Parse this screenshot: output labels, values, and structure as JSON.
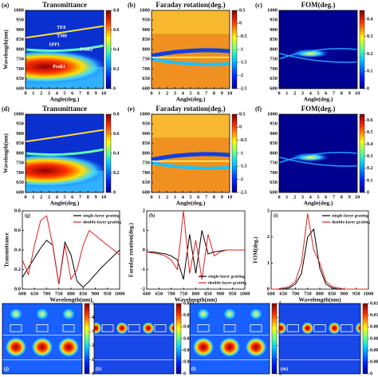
{
  "chart_data": [
    {
      "type": "heatmap",
      "panel": "(a)",
      "title": "Transmittance",
      "xlabel": "Angle(deg.)",
      "ylabel": "Wavelength(nm)",
      "xlim": [
        0,
        10
      ],
      "xticks": [
        0,
        1,
        2,
        3,
        4,
        5,
        6,
        7,
        8,
        9,
        10
      ],
      "ylim": [
        600,
        1000
      ],
      "yticks": [
        600,
        650,
        700,
        750,
        800,
        850,
        900,
        950,
        1000
      ],
      "colorbar_lim": [
        0,
        0.8
      ],
      "colorbar_ticks": [
        0,
        0.2,
        0.4,
        0.6,
        0.8
      ],
      "annotations": [
        "TE0",
        "TM0",
        "SPP1",
        "Peak2",
        "Peak1"
      ]
    },
    {
      "type": "heatmap",
      "panel": "(b)",
      "title": "Faraday rotation(deg.)",
      "xlabel": "Angle(deg.)",
      "xlim": [
        0,
        10
      ],
      "xticks": [
        0,
        1,
        2,
        3,
        4,
        5,
        6,
        7,
        8,
        9,
        10
      ],
      "ylim": [
        600,
        1000
      ],
      "yticks": [
        600,
        650,
        700,
        750,
        800,
        850,
        900,
        950,
        1000
      ],
      "colorbar_lim": [
        -2.5,
        0.5
      ],
      "colorbar_ticks": [
        0.5,
        0,
        -0.5,
        -1,
        -1.5,
        -2,
        -2.5
      ]
    },
    {
      "type": "heatmap",
      "panel": "(c)",
      "title": "FOM(deg.)",
      "xlabel": "Angle(deg.)",
      "xlim": [
        0,
        10
      ],
      "xticks": [
        0,
        1,
        2,
        3,
        4,
        5,
        6,
        7,
        8,
        9,
        10
      ],
      "ylim": [
        600,
        1000
      ],
      "yticks": [
        600,
        650,
        700,
        750,
        800,
        850,
        900,
        950,
        1000
      ],
      "colorbar_lim": [
        0,
        0.45
      ],
      "colorbar_ticks": [
        0,
        0.1,
        0.2,
        0.3,
        0.4
      ]
    },
    {
      "type": "heatmap",
      "panel": "(d)",
      "title": "Transmittance",
      "xlabel": "Angle(deg.)",
      "ylabel": "Wavelength(nm)",
      "xlim": [
        0,
        10
      ],
      "xticks": [
        0,
        1,
        2,
        3,
        4,
        5,
        6,
        7,
        8,
        9,
        10
      ],
      "ylim": [
        600,
        1000
      ],
      "yticks": [
        600,
        650,
        700,
        750,
        800,
        850,
        900,
        950,
        1000
      ],
      "colorbar_lim": [
        0,
        0.8
      ],
      "colorbar_ticks": [
        0,
        0.2,
        0.4,
        0.6,
        0.8
      ]
    },
    {
      "type": "heatmap",
      "panel": "(e)",
      "title": "Faraday rotation(deg.)",
      "xlabel": "Angle(deg.)",
      "xlim": [
        0,
        10
      ],
      "xticks": [
        0,
        1,
        2,
        3,
        4,
        5,
        6,
        7,
        8,
        9,
        10
      ],
      "ylim": [
        600,
        1000
      ],
      "yticks": [
        600,
        650,
        700,
        750,
        800,
        850,
        900,
        950,
        1000
      ],
      "colorbar_lim": [
        -2.5,
        0.5
      ],
      "colorbar_ticks": [
        0.5,
        0,
        -0.5,
        -1,
        -1.5,
        -2,
        -2.5
      ]
    },
    {
      "type": "heatmap",
      "panel": "(f)",
      "title": "FOM(deg.)",
      "xlabel": "Angle(deg.)",
      "xlim": [
        0,
        10
      ],
      "xticks": [
        0,
        1,
        2,
        3,
        4,
        5,
        6,
        7,
        8,
        9,
        10
      ],
      "ylim": [
        600,
        1000
      ],
      "yticks": [
        600,
        650,
        700,
        750,
        800,
        850,
        900,
        950,
        1000
      ],
      "colorbar_lim": [
        0,
        0.65
      ],
      "colorbar_ticks": [
        0,
        0.1,
        0.2,
        0.3,
        0.4,
        0.5,
        0.6
      ]
    },
    {
      "type": "line",
      "panel": "(g)",
      "xlabel": "Wavelength(nm)",
      "ylabel": "Transmittance",
      "xlim": [
        600,
        1000
      ],
      "xticks": [
        600,
        650,
        700,
        750,
        800,
        850,
        900,
        950,
        1000
      ],
      "ylim": [
        0,
        0.8
      ],
      "yticks": [
        {
          "value": 0,
          "label": "0.0"
        },
        {
          "value": 0.2,
          "label": "0.2"
        },
        {
          "value": 0.4,
          "label": "0.4"
        },
        {
          "value": 0.6,
          "label": "0.6"
        },
        {
          "value": 0.8,
          "label": "0.8"
        }
      ],
      "legend": "upper right",
      "x": [
        600,
        625,
        650,
        675,
        700,
        725,
        750,
        775,
        800,
        825,
        850,
        875,
        900,
        925,
        950,
        975,
        1000
      ],
      "series": [
        {
          "name": "single-layer grating",
          "color": "#000000",
          "values": [
            0.12,
            0.22,
            0.32,
            0.42,
            0.5,
            0.45,
            0.05,
            0.48,
            0.35,
            0.08,
            0.02,
            0.08,
            0.15,
            0.22,
            0.28,
            0.34,
            0.4
          ]
        },
        {
          "name": "double-layer grating",
          "color": "#e02020",
          "values": [
            0.3,
            0.15,
            0.45,
            0.7,
            0.75,
            0.45,
            0.05,
            0.45,
            0.1,
            0.2,
            0.45,
            0.6,
            0.55,
            0.5,
            0.45,
            0.4,
            0.35
          ]
        }
      ]
    },
    {
      "type": "line",
      "panel": "(h)",
      "xlabel": "Wavelength(nm)",
      "ylabel": "Faraday rotation(deg.)",
      "xlim": [
        600,
        1000
      ],
      "xticks": [
        600,
        650,
        700,
        750,
        800,
        850,
        900,
        950,
        1000
      ],
      "ylim": [
        -2,
        2
      ],
      "yticks": [
        -2,
        -1,
        0,
        1,
        2
      ],
      "legend": "lower right",
      "x": [
        600,
        625,
        650,
        675,
        700,
        725,
        750,
        775,
        800,
        825,
        850,
        875,
        900,
        925,
        950,
        975,
        1000
      ],
      "series": [
        {
          "name": "single-layer grating",
          "color": "#000000",
          "values": [
            -0.1,
            -0.1,
            -0.15,
            -0.2,
            -0.3,
            -0.5,
            -1.5,
            0.8,
            -1.2,
            1.0,
            -0.2,
            -0.1,
            -0.05,
            0,
            0,
            0,
            0
          ]
        },
        {
          "name": "double-layer grating",
          "color": "#e02020",
          "values": [
            -0.1,
            -0.15,
            -0.2,
            -0.3,
            -0.5,
            -1.0,
            2.0,
            -1.2,
            0.5,
            -1.5,
            0.8,
            -0.3,
            -0.1,
            0,
            0,
            0,
            0
          ]
        }
      ]
    },
    {
      "type": "line",
      "panel": "(i)",
      "xlabel": "Wavelength(nm)",
      "ylabel": "FOM(deg.)",
      "xlim": [
        600,
        1000
      ],
      "xticks": [
        600,
        650,
        700,
        750,
        800,
        850,
        900,
        950,
        1000
      ],
      "ylim": [
        0,
        3
      ],
      "yticks": [
        0,
        1,
        2,
        3
      ],
      "legend": "upper right",
      "x": [
        600,
        625,
        650,
        675,
        700,
        725,
        750,
        775,
        800,
        825,
        850,
        875,
        900,
        925,
        950,
        975,
        1000
      ],
      "series": [
        {
          "name": "single-layer grating",
          "color": "#000000",
          "values": [
            0,
            0,
            0,
            0.05,
            0.2,
            0.6,
            2.0,
            2.3,
            0.8,
            0.2,
            0.05,
            0,
            0,
            0,
            0,
            0,
            0
          ]
        },
        {
          "name": "double-layer grating",
          "color": "#e02020",
          "values": [
            0,
            0,
            0.05,
            0.1,
            0.3,
            1.0,
            2.9,
            1.5,
            1.0,
            0.3,
            0.1,
            0.05,
            0,
            0,
            0,
            0,
            0
          ]
        }
      ]
    },
    {
      "type": "field",
      "panel": "(j)",
      "colorbar_lim": [
        0,
        5
      ],
      "colorbar_ticks": [
        0,
        1,
        2,
        3,
        4,
        5
      ]
    },
    {
      "type": "field",
      "panel": "(k)",
      "colorbar_lim": [
        0,
        0.012
      ],
      "colorbar_ticks": [
        0,
        0.002,
        0.004,
        0.006,
        0.008,
        0.01,
        0.012
      ]
    },
    {
      "type": "field",
      "panel": "(l)",
      "colorbar_lim": [
        0,
        5
      ],
      "colorbar_ticks": [
        0,
        1,
        2,
        3,
        4,
        5
      ]
    },
    {
      "type": "field",
      "panel": "(m)",
      "colorbar_lim": [
        0,
        0.012
      ],
      "colorbar_ticks": [
        0,
        0.002,
        0.004,
        0.006,
        0.008,
        0.01,
        0.012
      ]
    }
  ]
}
